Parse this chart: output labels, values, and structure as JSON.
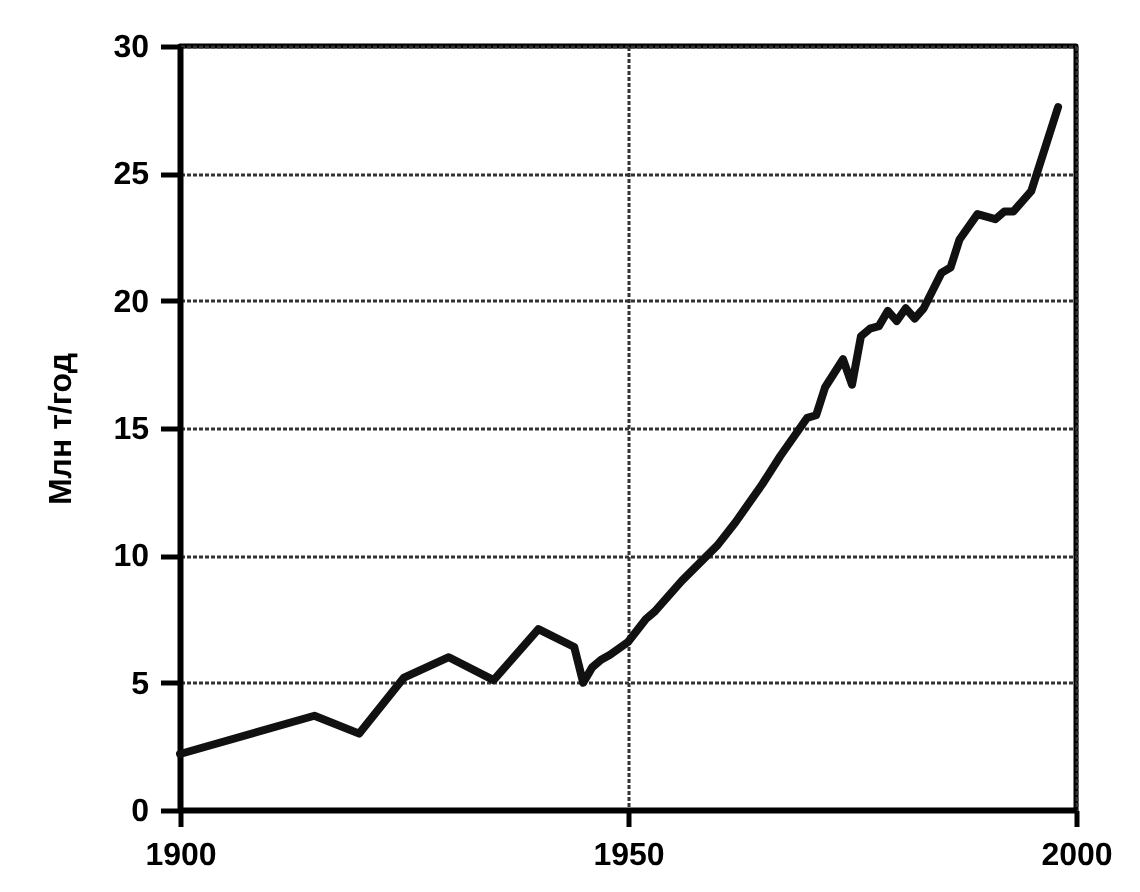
{
  "chart_data": {
    "type": "line",
    "ylabel": "Млн т/год",
    "x": [
      1900,
      1915,
      1920,
      1925,
      1930,
      1935,
      1940,
      1944,
      1945,
      1946,
      1947,
      1948,
      1950,
      1952,
      1953,
      1956,
      1960,
      1962,
      1965,
      1967,
      1970,
      1971,
      1972,
      1974,
      1975,
      1976,
      1977,
      1978,
      1979,
      1980,
      1981,
      1982,
      1983,
      1985,
      1986,
      1987,
      1989,
      1990,
      1991,
      1992,
      1993,
      1995,
      1998
    ],
    "series": [
      {
        "color": "#111111",
        "values": [
          2.2,
          3.7,
          3.0,
          5.2,
          6.0,
          5.1,
          7.1,
          6.4,
          5.0,
          5.6,
          5.9,
          6.1,
          6.6,
          7.5,
          7.8,
          9.0,
          10.4,
          11.3,
          12.8,
          13.9,
          15.4,
          15.5,
          16.6,
          17.7,
          16.7,
          18.6,
          18.9,
          19.0,
          19.6,
          19.2,
          19.7,
          19.3,
          19.7,
          21.1,
          21.3,
          22.4,
          23.4,
          23.3,
          23.2,
          23.5,
          23.5,
          24.3,
          27.6
        ]
      }
    ],
    "xlim": [
      1900,
      2000
    ],
    "ylim": [
      0,
      30
    ],
    "xticks": [
      1900,
      1950,
      2000
    ],
    "yticks": [
      0,
      5,
      10,
      15,
      20,
      25,
      30
    ],
    "grid": true
  }
}
